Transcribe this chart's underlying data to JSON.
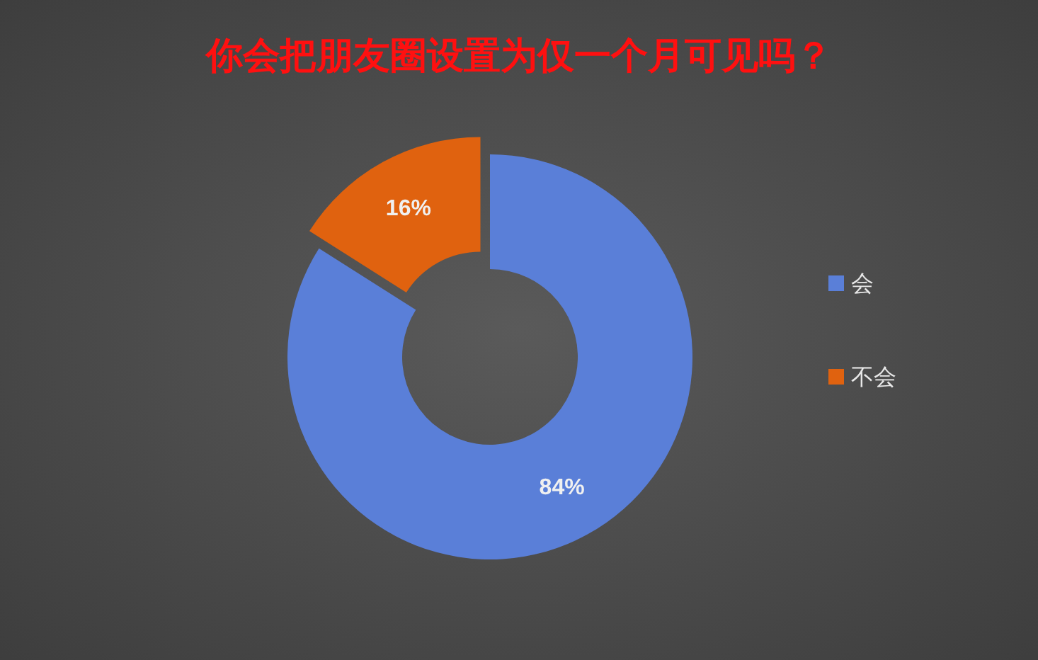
{
  "chart_data": {
    "type": "donut",
    "title": "你会把朋友圈设置为仅一个月可见吗？",
    "categories": [
      "会",
      "不会"
    ],
    "values": [
      84,
      16
    ],
    "colors": [
      "#5a7fd8",
      "#e0620f"
    ],
    "value_labels": [
      "84%",
      "16%"
    ],
    "legend": "right"
  }
}
